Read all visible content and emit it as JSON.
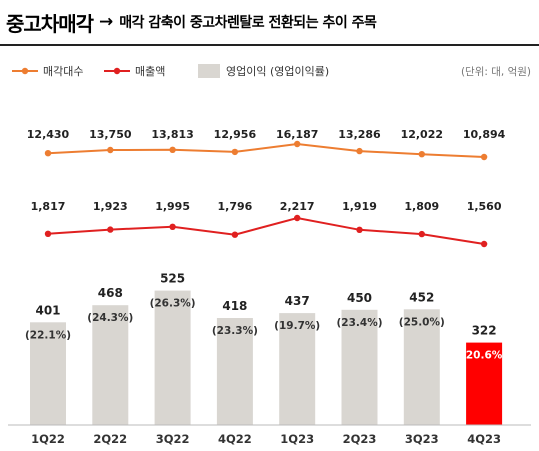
{
  "header": {
    "title_main": "중고차매각",
    "arrow": "→",
    "title_sub": "매각 감축이 중고차렌탈로 전환되는 추이 주목"
  },
  "unit_note": "(단위: 대, 억원)",
  "colors": {
    "sales_count": "#ED7D31",
    "revenue": "#E02020",
    "bar": "#D9D6D1",
    "bar_highlight": "#FF0000"
  },
  "chart_data": {
    "type": "bar",
    "categories": [
      "1Q22",
      "2Q22",
      "3Q22",
      "4Q22",
      "1Q23",
      "2Q23",
      "3Q23",
      "4Q23"
    ],
    "series": [
      {
        "name": "매각대수",
        "type": "line",
        "values": [
          12430,
          13750,
          13813,
          12956,
          16187,
          13286,
          12022,
          10894
        ],
        "labels": [
          "12,430",
          "13,750",
          "13,813",
          "12,956",
          "16,187",
          "13,286",
          "12,022",
          "10,894"
        ]
      },
      {
        "name": "매출액",
        "type": "line",
        "values": [
          1817,
          1923,
          1995,
          1796,
          2217,
          1919,
          1809,
          1560
        ],
        "labels": [
          "1,817",
          "1,923",
          "1,995",
          "1,796",
          "2,217",
          "1,919",
          "1,809",
          "1,560"
        ]
      },
      {
        "name": "영업이익 (영업이익률)",
        "type": "bar",
        "values": [
          401,
          468,
          525,
          418,
          437,
          450,
          452,
          322
        ],
        "labels": [
          "401",
          "468",
          "525",
          "418",
          "437",
          "450",
          "452",
          "322"
        ]
      }
    ],
    "margins": [
      "(22.1%)",
      "(24.3%)",
      "(26.3%)",
      "(23.3%)",
      "(19.7%)",
      "(23.4%)",
      "(25.0%)",
      "(20.6%)"
    ],
    "margin_values": [
      22.1,
      24.3,
      26.3,
      23.3,
      19.7,
      23.4,
      25.0,
      20.6
    ],
    "highlight_index": 7,
    "legend_position": "top-left"
  }
}
